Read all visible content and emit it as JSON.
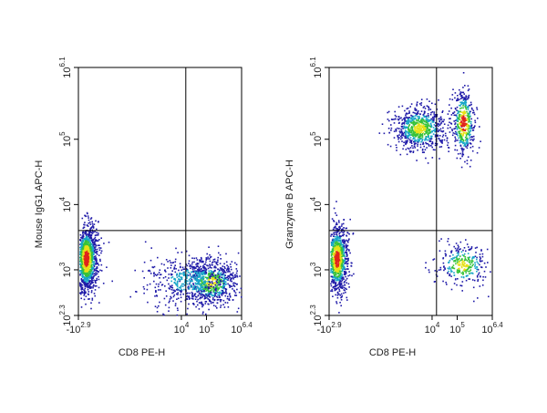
{
  "chart_data": [
    {
      "type": "scatter",
      "subtype": "flow-cytometry density dot plot",
      "xlabel": "CD8 PE-H",
      "ylabel": "Mouse IgG1 APC-H",
      "x_ticks": [
        {
          "base": "-10",
          "exp": "2.9",
          "value": -794
        },
        {
          "base": "10",
          "exp": "4",
          "value": 10000
        },
        {
          "base": "10",
          "exp": "5",
          "value": 100000
        },
        {
          "base": "10",
          "exp": "6.4",
          "value": 2511886
        }
      ],
      "y_ticks": [
        {
          "base": "10",
          "exp": "2.3",
          "value": 200
        },
        {
          "base": "10",
          "exp": "3",
          "value": 1000
        },
        {
          "base": "10",
          "exp": "4",
          "value": 10000
        },
        {
          "base": "10",
          "exp": "5",
          "value": 100000
        },
        {
          "base": "10",
          "exp": "6.1",
          "value": 1258925
        }
      ],
      "xlim": [
        -794,
        2511886
      ],
      "ylim": [
        200,
        1258925
      ],
      "x_scale": "biexponential",
      "y_scale": "log",
      "gates": {
        "x": 15000,
        "y": 4000
      },
      "populations": [
        {
          "x": -400,
          "y": 1500,
          "relative_size": 0.55,
          "density": "high"
        },
        {
          "x": 150000,
          "y": 650,
          "relative_size": 0.25,
          "density": "medium"
        },
        {
          "x": 20000,
          "y": 700,
          "relative_size": 0.2,
          "density": "low"
        }
      ],
      "quadrant_percent_visible": false
    },
    {
      "type": "scatter",
      "subtype": "flow-cytometry density dot plot",
      "xlabel": "CD8 PE-H",
      "ylabel": "Granzyme B APC-H",
      "x_ticks": [
        {
          "base": "-10",
          "exp": "2.9",
          "value": -794
        },
        {
          "base": "10",
          "exp": "4",
          "value": 10000
        },
        {
          "base": "10",
          "exp": "5",
          "value": 100000
        },
        {
          "base": "10",
          "exp": "6.4",
          "value": 2511886
        }
      ],
      "y_ticks": [
        {
          "base": "10",
          "exp": "2.3",
          "value": 200
        },
        {
          "base": "10",
          "exp": "3",
          "value": 1000
        },
        {
          "base": "10",
          "exp": "4",
          "value": 10000
        },
        {
          "base": "10",
          "exp": "5",
          "value": 100000
        },
        {
          "base": "10",
          "exp": "6.1",
          "value": 1258925
        }
      ],
      "xlim": [
        -794,
        2511886
      ],
      "ylim": [
        200,
        1258925
      ],
      "x_scale": "biexponential",
      "y_scale": "log",
      "gates": {
        "x": 15000,
        "y": 4000
      },
      "populations": [
        {
          "x": -400,
          "y": 1500,
          "relative_size": 0.4,
          "density": "high"
        },
        {
          "x": 160000,
          "y": 1200,
          "relative_size": 0.12,
          "density": "medium"
        },
        {
          "x": 3000,
          "y": 150000,
          "relative_size": 0.3,
          "density": "medium"
        },
        {
          "x": 170000,
          "y": 180000,
          "relative_size": 0.18,
          "density": "high"
        }
      ],
      "quadrant_percent_visible": false
    }
  ],
  "colors": {
    "low": "#1f1aa8",
    "mid_low": "#18a6c8",
    "mid": "#36c23a",
    "mid_high": "#e6e117",
    "high": "#e0241b",
    "axis": "#000000",
    "gate": "#000000"
  }
}
